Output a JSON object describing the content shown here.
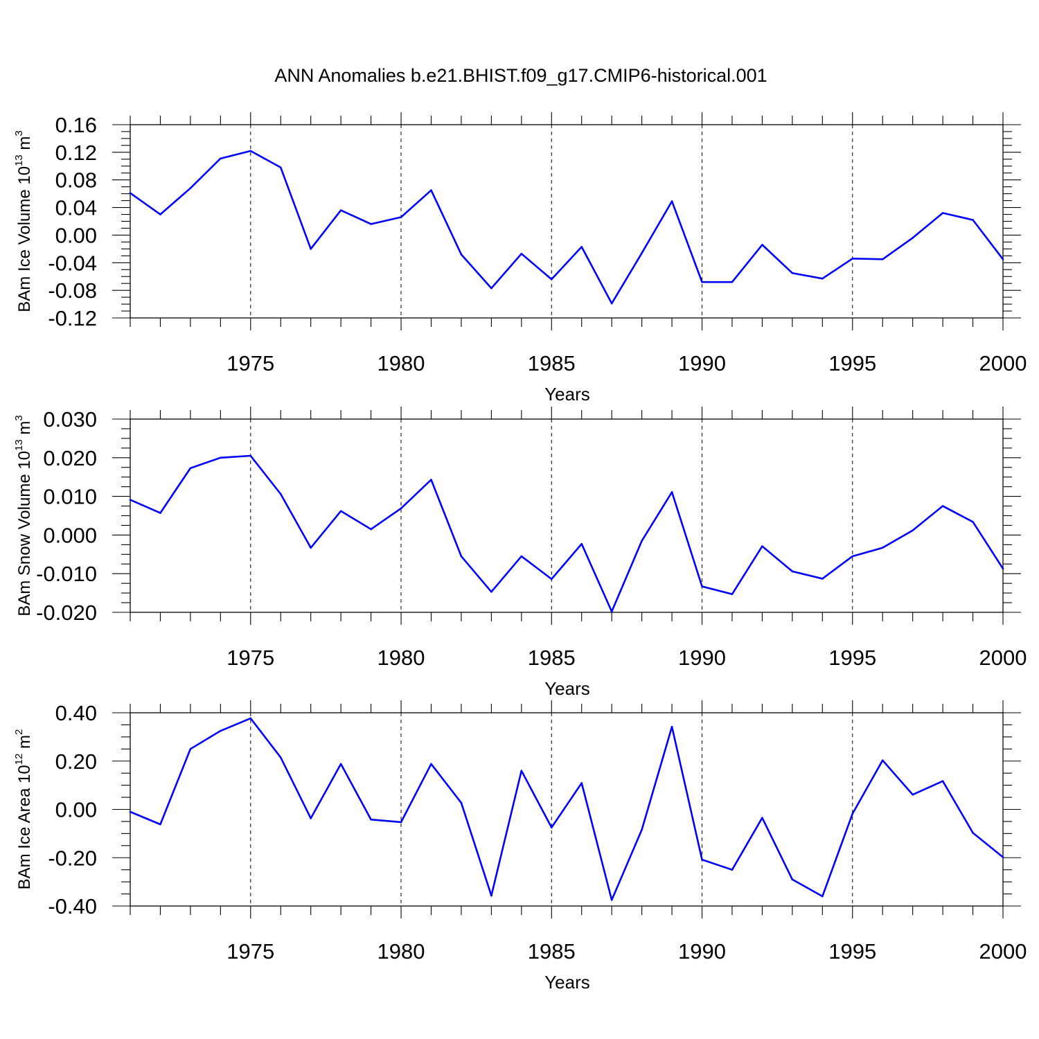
{
  "title": "ANN Anomalies b.e21.BHIST.f09_g17.CMIP6-historical.001",
  "colors": {
    "series": "#0000ff",
    "axes": "#000000",
    "background": "#ffffff"
  },
  "chart_data": [
    {
      "type": "line",
      "name": "ice-volume",
      "ylabel_main": "BAm Ice Volume 10",
      "ylabel_exp": "13",
      "ylabel_unit": " m",
      "ylabel_unit_exp": "3",
      "xlabel": "Years",
      "xlim": [
        1971,
        2000
      ],
      "ylim": [
        -0.12,
        0.16
      ],
      "yticks": [
        "-0.12",
        "-0.08",
        "-0.04",
        "0.00",
        "0.04",
        "0.08",
        "0.12",
        "0.16"
      ],
      "ytick_values": [
        -0.12,
        -0.08,
        -0.04,
        0.0,
        0.04,
        0.08,
        0.12,
        0.16
      ],
      "xticks": [
        "1975",
        "1980",
        "1985",
        "1990",
        "1995",
        "2000"
      ],
      "xtick_values": [
        1975,
        1980,
        1985,
        1990,
        1995,
        2000
      ],
      "x": [
        1971,
        1972,
        1973,
        1974,
        1975,
        1976,
        1977,
        1978,
        1979,
        1980,
        1981,
        1982,
        1983,
        1984,
        1985,
        1986,
        1987,
        1988,
        1989,
        1990,
        1991,
        1992,
        1993,
        1994,
        1995,
        1996,
        1997,
        1998,
        1999,
        2000
      ],
      "values": [
        0.061,
        0.03,
        0.068,
        0.111,
        0.122,
        0.098,
        -0.02,
        0.036,
        0.016,
        0.026,
        0.065,
        -0.028,
        -0.077,
        -0.027,
        -0.064,
        -0.017,
        -0.099,
        -0.026,
        0.049,
        -0.068,
        -0.068,
        -0.014,
        -0.055,
        -0.063,
        -0.034,
        -0.035,
        -0.004,
        0.032,
        0.022,
        -0.035
      ]
    },
    {
      "type": "line",
      "name": "snow-volume",
      "ylabel_main": "BAm Snow Volume 10",
      "ylabel_exp": "13",
      "ylabel_unit": " m",
      "ylabel_unit_exp": "3",
      "xlabel": "Years",
      "xlim": [
        1971,
        2000
      ],
      "ylim": [
        -0.02,
        0.03
      ],
      "yticks": [
        "-0.020",
        "-0.010",
        "0.000",
        "0.010",
        "0.020",
        "0.030"
      ],
      "ytick_values": [
        -0.02,
        -0.01,
        0.0,
        0.01,
        0.02,
        0.03
      ],
      "xticks": [
        "1975",
        "1980",
        "1985",
        "1990",
        "1995",
        "2000"
      ],
      "xtick_values": [
        1975,
        1980,
        1985,
        1990,
        1995,
        2000
      ],
      "x": [
        1971,
        1972,
        1973,
        1974,
        1975,
        1976,
        1977,
        1978,
        1979,
        1980,
        1981,
        1982,
        1983,
        1984,
        1985,
        1986,
        1987,
        1988,
        1989,
        1990,
        1991,
        1992,
        1993,
        1994,
        1995,
        1996,
        1997,
        1998,
        1999,
        2000
      ],
      "values": [
        0.0091,
        0.0057,
        0.0173,
        0.02,
        0.0205,
        0.0106,
        -0.0033,
        0.0062,
        0.0015,
        0.0069,
        0.0143,
        -0.0055,
        -0.0147,
        -0.0055,
        -0.0114,
        -0.0023,
        -0.0198,
        -0.0015,
        0.0111,
        -0.0133,
        -0.0153,
        -0.0029,
        -0.0094,
        -0.0113,
        -0.0055,
        -0.0033,
        0.0012,
        0.0075,
        0.0034,
        -0.0087
      ]
    },
    {
      "type": "line",
      "name": "ice-area",
      "ylabel_main": "BAm Ice Area 10",
      "ylabel_exp": "12",
      "ylabel_unit": " m",
      "ylabel_unit_exp": "2",
      "xlabel": "Years",
      "xlim": [
        1971,
        2000
      ],
      "ylim": [
        -0.4,
        0.4
      ],
      "yticks": [
        "-0.40",
        "-0.20",
        "0.00",
        "0.20",
        "0.40"
      ],
      "ytick_values": [
        -0.4,
        -0.2,
        0.0,
        0.2,
        0.4
      ],
      "xticks": [
        "1975",
        "1980",
        "1985",
        "1990",
        "1995",
        "2000"
      ],
      "xtick_values": [
        1975,
        1980,
        1985,
        1990,
        1995,
        2000
      ],
      "x": [
        1971,
        1972,
        1973,
        1974,
        1975,
        1976,
        1977,
        1978,
        1979,
        1980,
        1981,
        1982,
        1983,
        1984,
        1985,
        1986,
        1987,
        1988,
        1989,
        1990,
        1991,
        1992,
        1993,
        1994,
        1995,
        1996,
        1997,
        1998,
        1999,
        2000
      ],
      "values": [
        -0.01,
        -0.062,
        0.25,
        0.325,
        0.377,
        0.215,
        -0.037,
        0.188,
        -0.042,
        -0.053,
        0.188,
        0.027,
        -0.357,
        0.16,
        -0.075,
        0.109,
        -0.375,
        -0.084,
        0.342,
        -0.208,
        -0.25,
        -0.035,
        -0.29,
        -0.36,
        -0.018,
        0.203,
        0.061,
        0.117,
        -0.097,
        -0.198
      ]
    }
  ]
}
